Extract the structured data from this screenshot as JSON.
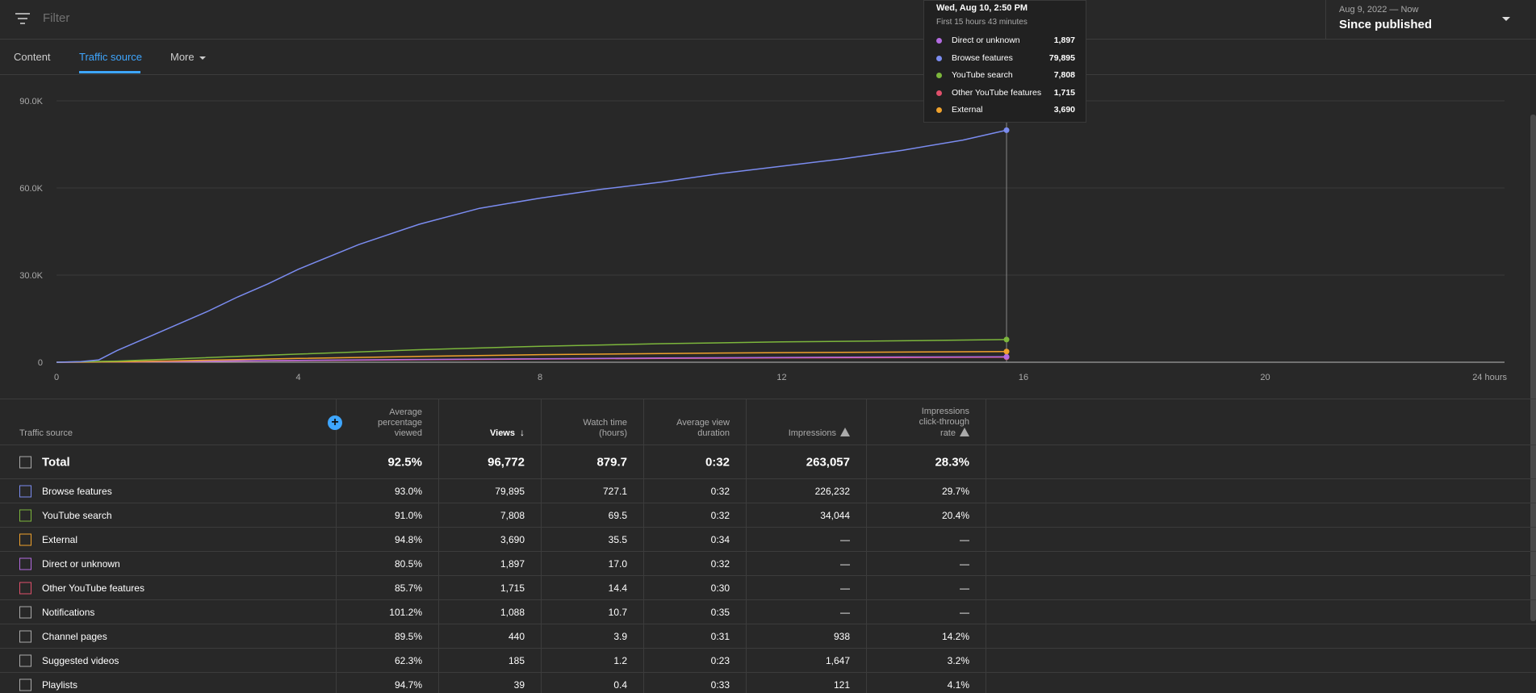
{
  "filter": {
    "placeholder": "Filter"
  },
  "date_picker": {
    "range": "Aug 9, 2022 — Now",
    "value": "Since published"
  },
  "tabs": [
    {
      "label": "Content",
      "active": false
    },
    {
      "label": "Traffic source",
      "active": true
    },
    {
      "label": "More",
      "active": false
    }
  ],
  "tooltip": {
    "title": "Wed, Aug 10, 2:50 PM",
    "subtitle": "First 15 hours 43 minutes",
    "rows": [
      {
        "name": "Direct or unknown",
        "value": "1,897",
        "color": "#b36be0"
      },
      {
        "name": "Browse features",
        "value": "79,895",
        "color": "#7b8cf0"
      },
      {
        "name": "YouTube search",
        "value": "7,808",
        "color": "#7cb63c"
      },
      {
        "name": "Other YouTube features",
        "value": "1,715",
        "color": "#e0506b"
      },
      {
        "name": "External",
        "value": "3,690",
        "color": "#f0a22c"
      }
    ]
  },
  "chart_data": {
    "type": "line",
    "xlabel": "",
    "ylabel": "",
    "x_ticks": [
      "0",
      "4",
      "8",
      "12",
      "16",
      "20",
      "24 hours"
    ],
    "y_ticks": [
      "0",
      "30.0K",
      "60.0K",
      "90.0K"
    ],
    "xlim": [
      0,
      24
    ],
    "ylim": [
      0,
      90000
    ],
    "grid": true,
    "cursor_x": 15.72,
    "series": [
      {
        "name": "Browse features",
        "color": "#7b8cf0",
        "x": [
          0,
          0.4,
          0.7,
          1,
          1.5,
          2,
          2.5,
          3,
          3.5,
          4,
          5,
          6,
          7,
          8,
          9,
          10,
          11,
          12,
          13,
          14,
          15,
          15.72
        ],
        "y": [
          0,
          200,
          800,
          4000,
          8500,
          13000,
          17500,
          22500,
          27000,
          32000,
          40500,
          47500,
          53000,
          56500,
          59500,
          62000,
          65000,
          67500,
          70000,
          73000,
          76500,
          79895
        ]
      },
      {
        "name": "YouTube search",
        "color": "#7cb63c",
        "x": [
          0,
          1,
          2,
          3,
          4,
          6,
          8,
          10,
          12,
          14,
          15.72
        ],
        "y": [
          0,
          400,
          1200,
          2000,
          2800,
          4300,
          5500,
          6400,
          7000,
          7400,
          7808
        ]
      },
      {
        "name": "External",
        "color": "#f0a22c",
        "x": [
          0,
          1,
          2,
          3,
          4,
          6,
          8,
          10,
          12,
          14,
          15.72
        ],
        "y": [
          0,
          150,
          500,
          900,
          1300,
          2000,
          2600,
          3000,
          3300,
          3500,
          3690
        ]
      },
      {
        "name": "Direct or unknown",
        "color": "#b36be0",
        "x": [
          0,
          1,
          2,
          4,
          6,
          8,
          10,
          12,
          14,
          15.72
        ],
        "y": [
          0,
          100,
          300,
          650,
          950,
          1200,
          1450,
          1650,
          1800,
          1897
        ]
      },
      {
        "name": "Other YouTube features",
        "color": "#e0506b",
        "x": [
          0,
          1,
          2,
          4,
          6,
          8,
          10,
          12,
          14,
          15.72
        ],
        "y": [
          0,
          80,
          250,
          550,
          850,
          1100,
          1300,
          1500,
          1620,
          1715
        ]
      }
    ]
  },
  "table": {
    "headers": {
      "source": "Traffic source",
      "avg_pct": [
        "Average",
        "percentage",
        "viewed"
      ],
      "views": "Views",
      "watch": [
        "Watch time",
        "(hours)"
      ],
      "avg_dur": [
        "Average view",
        "duration"
      ],
      "impr": "Impressions",
      "ctr": [
        "Impressions",
        "click-through",
        "rate"
      ]
    },
    "total": {
      "name": "Total",
      "avg_pct": "92.5%",
      "views": "96,772",
      "watch": "879.7",
      "avg_dur": "0:32",
      "impr": "263,057",
      "ctr": "28.3%"
    },
    "rows": [
      {
        "name": "Browse features",
        "color": "#7b8cf0",
        "avg_pct": "93.0%",
        "views": "79,895",
        "watch": "727.1",
        "avg_dur": "0:32",
        "impr": "226,232",
        "ctr": "29.7%"
      },
      {
        "name": "YouTube search",
        "color": "#7cb63c",
        "avg_pct": "91.0%",
        "views": "7,808",
        "watch": "69.5",
        "avg_dur": "0:32",
        "impr": "34,044",
        "ctr": "20.4%"
      },
      {
        "name": "External",
        "color": "#f0a22c",
        "avg_pct": "94.8%",
        "views": "3,690",
        "watch": "35.5",
        "avg_dur": "0:34",
        "impr": "—",
        "ctr": "—"
      },
      {
        "name": "Direct or unknown",
        "color": "#b36be0",
        "avg_pct": "80.5%",
        "views": "1,897",
        "watch": "17.0",
        "avg_dur": "0:32",
        "impr": "—",
        "ctr": "—"
      },
      {
        "name": "Other YouTube features",
        "color": "#e0506b",
        "avg_pct": "85.7%",
        "views": "1,715",
        "watch": "14.4",
        "avg_dur": "0:30",
        "impr": "—",
        "ctr": "—"
      },
      {
        "name": "Notifications",
        "color": "#aaaaaa",
        "avg_pct": "101.2%",
        "views": "1,088",
        "watch": "10.7",
        "avg_dur": "0:35",
        "impr": "—",
        "ctr": "—"
      },
      {
        "name": "Channel pages",
        "color": "#aaaaaa",
        "avg_pct": "89.5%",
        "views": "440",
        "watch": "3.9",
        "avg_dur": "0:31",
        "impr": "938",
        "ctr": "14.2%"
      },
      {
        "name": "Suggested videos",
        "color": "#aaaaaa",
        "avg_pct": "62.3%",
        "views": "185",
        "watch": "1.2",
        "avg_dur": "0:23",
        "impr": "1,647",
        "ctr": "3.2%"
      },
      {
        "name": "Playlists",
        "color": "#aaaaaa",
        "avg_pct": "94.7%",
        "views": "39",
        "watch": "0.4",
        "avg_dur": "0:33",
        "impr": "121",
        "ctr": "4.1%"
      }
    ]
  }
}
